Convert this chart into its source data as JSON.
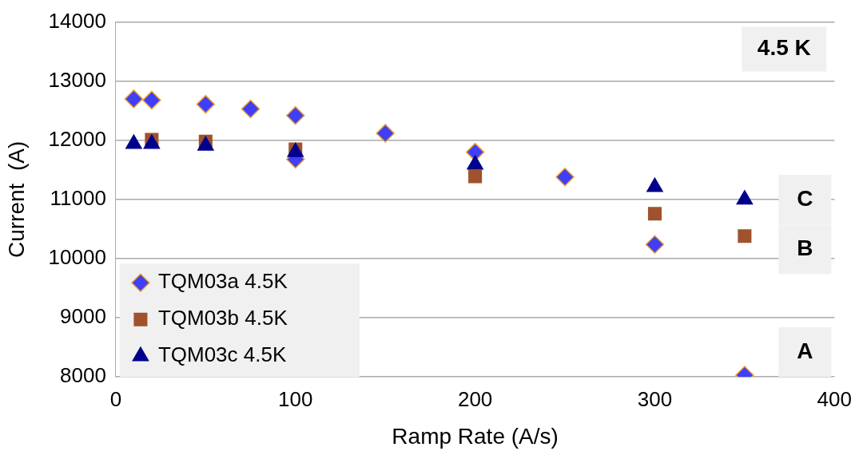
{
  "chart_data": {
    "type": "scatter",
    "xlabel": "Ramp Rate (A/s)",
    "ylabel": "Current  (A)",
    "xlim": [
      0,
      400
    ],
    "xticks": [
      0,
      100,
      200,
      300,
      400
    ],
    "ylim": [
      8000,
      14000
    ],
    "yticks": [
      8000,
      9000,
      10000,
      11000,
      12000,
      13000,
      14000
    ],
    "grid": "y",
    "legend": "bottom left",
    "series": [
      {
        "name": "TQM03a 4.5K",
        "color": "#3f3ff5",
        "marker": "diamond",
        "x": [
          10,
          20,
          50,
          75,
          100,
          100,
          150,
          200,
          250,
          300,
          350
        ],
        "values": [
          12700,
          12680,
          12610,
          12530,
          12420,
          11680,
          12120,
          11800,
          11380,
          10240,
          8030
        ]
      },
      {
        "name": "TQM03b 4.5K",
        "color": "#a0522d",
        "marker": "square",
        "x": [
          20,
          50,
          100,
          200,
          300,
          350
        ],
        "values": [
          12010,
          11980,
          11850,
          11390,
          10760,
          10380
        ]
      },
      {
        "name": "TQM03c 4.5K",
        "color": "#00008b",
        "marker": "triangle",
        "x": [
          10,
          20,
          50,
          100,
          200,
          300,
          350
        ],
        "values": [
          11940,
          11940,
          11910,
          11800,
          11590,
          11210,
          11000
        ]
      }
    ],
    "annotations": [
      "4.5 K",
      "C",
      "B",
      "A"
    ]
  }
}
